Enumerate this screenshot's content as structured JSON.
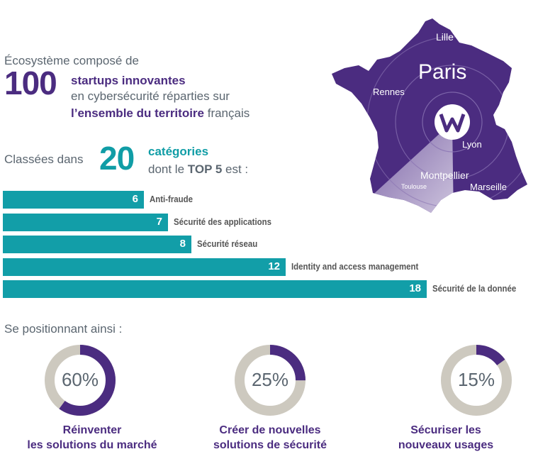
{
  "intro": {
    "line1": "Écosystème composé de",
    "big_number": "100",
    "line2": "startups innovantes",
    "line3": "en cybersécurité réparties sur",
    "line4_bold": "l’ensemble du territoire",
    "line4_rest": " français"
  },
  "categories": {
    "prefix": "Classées dans",
    "big_number": "20",
    "label": "catégories",
    "top5_prefix": "dont le ",
    "top5_bold": "TOP 5",
    "top5_suffix": " est :"
  },
  "map": {
    "cities": {
      "lille": "Lille",
      "paris": "Paris",
      "rennes": "Rennes",
      "lyon": "Lyon",
      "montpellier": "Montpellier",
      "toulouse": "Toulouse",
      "marseille": "Marseille"
    },
    "logo": "w-logo-icon",
    "fill_color": "#4b2c80"
  },
  "positioning_label": "Se positionnant ainsi :",
  "chart_data": [
    {
      "type": "bar",
      "orientation": "horizontal",
      "categories": [
        "Anti-fraude",
        "Sécurité des applications",
        "Sécurité réseau",
        "Identity and access management",
        "Sécurité de la donnée"
      ],
      "values": [
        6,
        7,
        8,
        12,
        18
      ],
      "xlim": [
        0,
        18
      ],
      "color": "#129ea8"
    },
    {
      "type": "pie",
      "style": "donut",
      "items": [
        {
          "value": 60,
          "label": "60%",
          "caption": [
            "Réinventer",
            "les solutions du marché"
          ]
        },
        {
          "value": 25,
          "label": "25%",
          "caption": [
            "Créer de nouvelles",
            "solutions de sécurité"
          ]
        },
        {
          "value": 15,
          "label": "15%",
          "caption": [
            "Sécuriser les",
            "nouveaux usages"
          ]
        }
      ],
      "colors": {
        "fill": "#4b2c80",
        "track": "#cdc9bf"
      }
    }
  ]
}
